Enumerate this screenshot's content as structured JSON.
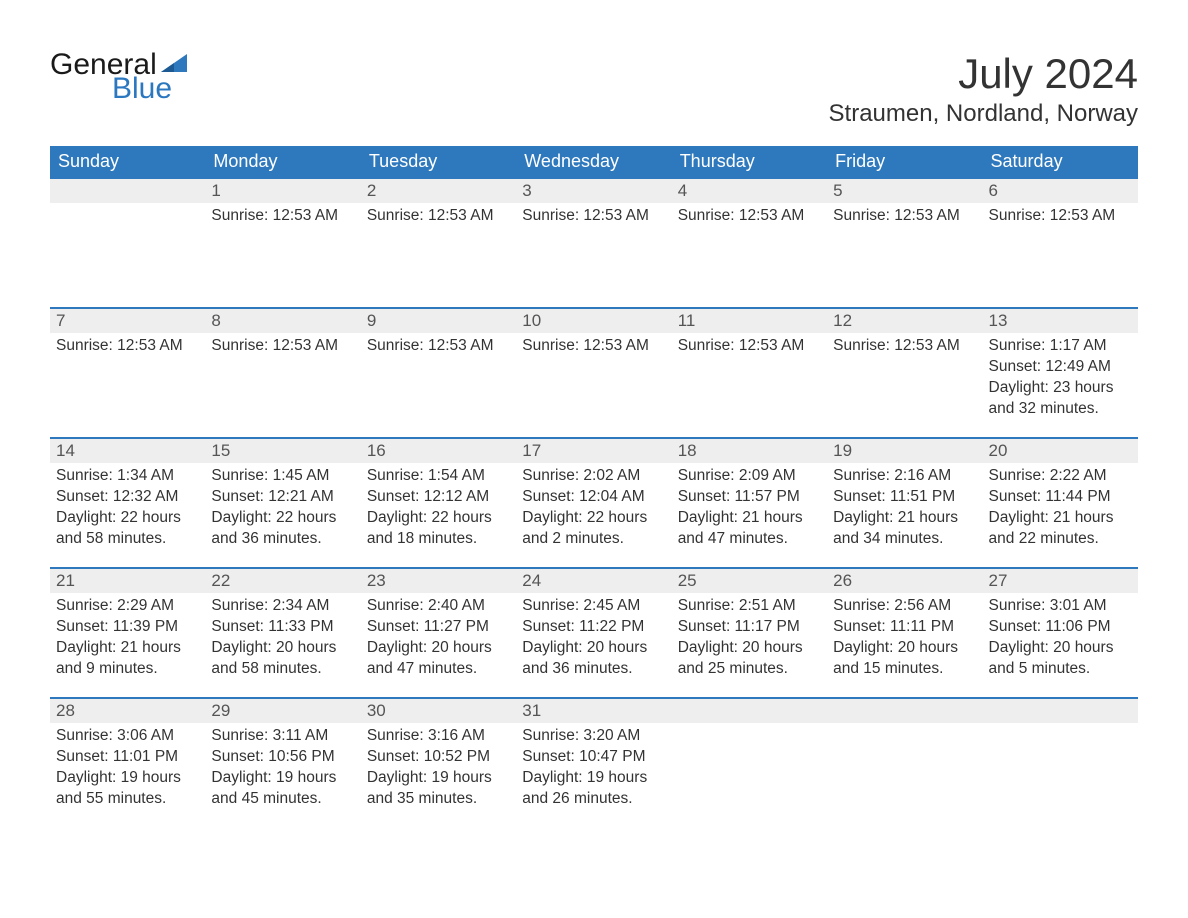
{
  "logo": {
    "text1": "General",
    "text2": "Blue",
    "flag_color": "#2e79bd"
  },
  "title": "July 2024",
  "location": "Straumen, Nordland, Norway",
  "colors": {
    "header_bg": "#2e79bd",
    "header_text": "#ffffff",
    "daynum_bg": "#eeeeee",
    "row_border": "#2e79bd",
    "body_text": "#333333",
    "logo_blue": "#2c78c0"
  },
  "dayNames": [
    "Sunday",
    "Monday",
    "Tuesday",
    "Wednesday",
    "Thursday",
    "Friday",
    "Saturday"
  ],
  "layout": {
    "columns": 7,
    "column_width_pct": 14.2857,
    "th_fontsize": 18,
    "daynum_fontsize": 17,
    "body_fontsize": 15.5,
    "title_fontsize": 42,
    "location_fontsize": 24
  },
  "weeks": [
    [
      {
        "day": "",
        "lines": []
      },
      {
        "day": "1",
        "lines": [
          "Sunrise: 12:53 AM"
        ]
      },
      {
        "day": "2",
        "lines": [
          "Sunrise: 12:53 AM"
        ]
      },
      {
        "day": "3",
        "lines": [
          "Sunrise: 12:53 AM"
        ]
      },
      {
        "day": "4",
        "lines": [
          "Sunrise: 12:53 AM"
        ]
      },
      {
        "day": "5",
        "lines": [
          "Sunrise: 12:53 AM"
        ]
      },
      {
        "day": "6",
        "lines": [
          "Sunrise: 12:53 AM"
        ]
      }
    ],
    [
      {
        "day": "7",
        "lines": [
          "Sunrise: 12:53 AM"
        ]
      },
      {
        "day": "8",
        "lines": [
          "Sunrise: 12:53 AM"
        ]
      },
      {
        "day": "9",
        "lines": [
          "Sunrise: 12:53 AM"
        ]
      },
      {
        "day": "10",
        "lines": [
          "Sunrise: 12:53 AM"
        ]
      },
      {
        "day": "11",
        "lines": [
          "Sunrise: 12:53 AM"
        ]
      },
      {
        "day": "12",
        "lines": [
          "Sunrise: 12:53 AM"
        ]
      },
      {
        "day": "13",
        "lines": [
          "Sunrise: 1:17 AM",
          "Sunset: 12:49 AM",
          "Daylight: 23 hours and 32 minutes."
        ]
      }
    ],
    [
      {
        "day": "14",
        "lines": [
          "Sunrise: 1:34 AM",
          "Sunset: 12:32 AM",
          "Daylight: 22 hours and 58 minutes."
        ]
      },
      {
        "day": "15",
        "lines": [
          "Sunrise: 1:45 AM",
          "Sunset: 12:21 AM",
          "Daylight: 22 hours and 36 minutes."
        ]
      },
      {
        "day": "16",
        "lines": [
          "Sunrise: 1:54 AM",
          "Sunset: 12:12 AM",
          "Daylight: 22 hours and 18 minutes."
        ]
      },
      {
        "day": "17",
        "lines": [
          "Sunrise: 2:02 AM",
          "Sunset: 12:04 AM",
          "Daylight: 22 hours and 2 minutes."
        ]
      },
      {
        "day": "18",
        "lines": [
          "Sunrise: 2:09 AM",
          "Sunset: 11:57 PM",
          "Daylight: 21 hours and 47 minutes."
        ]
      },
      {
        "day": "19",
        "lines": [
          "Sunrise: 2:16 AM",
          "Sunset: 11:51 PM",
          "Daylight: 21 hours and 34 minutes."
        ]
      },
      {
        "day": "20",
        "lines": [
          "Sunrise: 2:22 AM",
          "Sunset: 11:44 PM",
          "Daylight: 21 hours and 22 minutes."
        ]
      }
    ],
    [
      {
        "day": "21",
        "lines": [
          "Sunrise: 2:29 AM",
          "Sunset: 11:39 PM",
          "Daylight: 21 hours and 9 minutes."
        ]
      },
      {
        "day": "22",
        "lines": [
          "Sunrise: 2:34 AM",
          "Sunset: 11:33 PM",
          "Daylight: 20 hours and 58 minutes."
        ]
      },
      {
        "day": "23",
        "lines": [
          "Sunrise: 2:40 AM",
          "Sunset: 11:27 PM",
          "Daylight: 20 hours and 47 minutes."
        ]
      },
      {
        "day": "24",
        "lines": [
          "Sunrise: 2:45 AM",
          "Sunset: 11:22 PM",
          "Daylight: 20 hours and 36 minutes."
        ]
      },
      {
        "day": "25",
        "lines": [
          "Sunrise: 2:51 AM",
          "Sunset: 11:17 PM",
          "Daylight: 20 hours and 25 minutes."
        ]
      },
      {
        "day": "26",
        "lines": [
          "Sunrise: 2:56 AM",
          "Sunset: 11:11 PM",
          "Daylight: 20 hours and 15 minutes."
        ]
      },
      {
        "day": "27",
        "lines": [
          "Sunrise: 3:01 AM",
          "Sunset: 11:06 PM",
          "Daylight: 20 hours and 5 minutes."
        ]
      }
    ],
    [
      {
        "day": "28",
        "lines": [
          "Sunrise: 3:06 AM",
          "Sunset: 11:01 PM",
          "Daylight: 19 hours and 55 minutes."
        ]
      },
      {
        "day": "29",
        "lines": [
          "Sunrise: 3:11 AM",
          "Sunset: 10:56 PM",
          "Daylight: 19 hours and 45 minutes."
        ]
      },
      {
        "day": "30",
        "lines": [
          "Sunrise: 3:16 AM",
          "Sunset: 10:52 PM",
          "Daylight: 19 hours and 35 minutes."
        ]
      },
      {
        "day": "31",
        "lines": [
          "Sunrise: 3:20 AM",
          "Sunset: 10:47 PM",
          "Daylight: 19 hours and 26 minutes."
        ]
      },
      {
        "day": "",
        "lines": []
      },
      {
        "day": "",
        "lines": []
      },
      {
        "day": "",
        "lines": []
      }
    ]
  ]
}
